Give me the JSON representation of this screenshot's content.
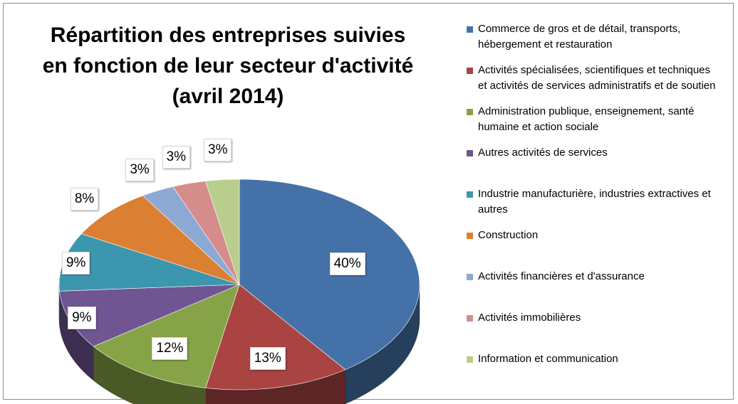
{
  "title_lines": [
    "Répartition des entreprises suivies",
    "en fonction de leur secteur d'activité",
    "(avril 2014)"
  ],
  "chart_data": {
    "type": "pie",
    "title": "Répartition des entreprises suivies en fonction de leur secteur d'activité (avril 2014)",
    "slices": [
      {
        "name": "Commerce de gros et de détail, transports, hébergement et restauration",
        "value": 40,
        "label": "40%",
        "color": "#4472a8"
      },
      {
        "name": "Activités spécialisées, scientifiques et techniques et activités de services administratifs et de soutien",
        "value": 13,
        "label": "13%",
        "color": "#a94442"
      },
      {
        "name": "Administration publique, enseignement, santé humaine et action sociale",
        "value": 12,
        "label": "12%",
        "color": "#86a447"
      },
      {
        "name": "Autres activités de services",
        "value": 9,
        "label": "9%",
        "color": "#6f5693"
      },
      {
        "name": "Industrie manufacturière, industries extractives  et autres",
        "value": 9,
        "label": "9%",
        "color": "#3c97ae"
      },
      {
        "name": "Construction",
        "value": 8,
        "label": "8%",
        "color": "#db8033"
      },
      {
        "name": "Activités financières et d'assurance",
        "value": 3,
        "label": "3%",
        "color": "#8ea8d4"
      },
      {
        "name": "Activités immobilières",
        "value": 3,
        "label": "3%",
        "color": "#d58d8b"
      },
      {
        "name": "Information et communication",
        "value": 3,
        "label": "3%",
        "color": "#b9cd8d"
      }
    ],
    "legend_lines": [
      [
        "Commerce de gros et de détail, transports,",
        "hébergement et restauration"
      ],
      [
        "Activités spécialisées, scientifiques et techniques",
        "et activités de services administratifs et de soutien"
      ],
      [
        "Administration publique, enseignement, santé",
        "humaine et action sociale"
      ],
      [
        "Autres activités de services"
      ],
      [
        "Industrie manufacturière, industries extractives  et",
        "autres"
      ],
      [
        "Construction"
      ],
      [
        "Activités financières et d'assurance"
      ],
      [
        "Activités immobilières"
      ],
      [
        "Information et communication"
      ]
    ],
    "legend_position": "right",
    "style": "3d-pie"
  }
}
